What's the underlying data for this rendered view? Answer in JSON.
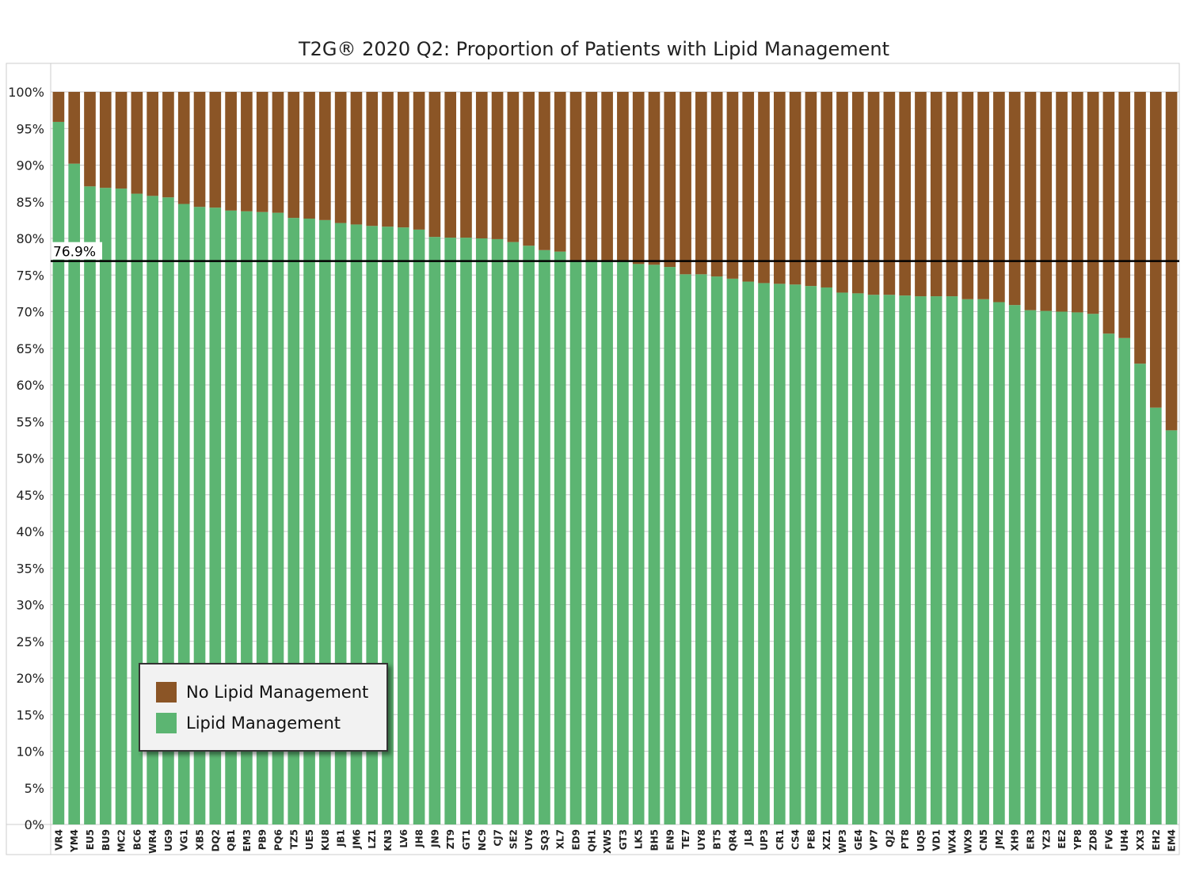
{
  "chart_data": {
    "type": "bar",
    "stacked": true,
    "title": "T2G® 2020 Q2: Proportion of Patients with Lipid Management",
    "xlabel": "",
    "ylabel": "",
    "ylim": [
      0,
      100
    ],
    "y_ticks": [
      "0%",
      "5%",
      "10%",
      "15%",
      "20%",
      "25%",
      "30%",
      "35%",
      "40%",
      "45%",
      "50%",
      "55%",
      "60%",
      "65%",
      "70%",
      "75%",
      "80%",
      "85%",
      "90%",
      "95%",
      "100%"
    ],
    "grid": "horizontal",
    "legend_position": "bottom-left",
    "reference_line": {
      "value": 76.9,
      "label": "76.9%"
    },
    "categories": [
      "VR4",
      "YM4",
      "EU5",
      "BU9",
      "MC2",
      "BC6",
      "WR4",
      "UG9",
      "VG1",
      "XB5",
      "DQ2",
      "QB1",
      "EM3",
      "PB9",
      "PQ6",
      "TZ5",
      "UE5",
      "KU8",
      "JB1",
      "JM6",
      "LZ1",
      "KN3",
      "LV6",
      "JH8",
      "JN9",
      "ZT9",
      "GT1",
      "NC9",
      "CJ7",
      "SE2",
      "UY6",
      "SQ3",
      "XL7",
      "ED9",
      "QH1",
      "XW5",
      "GT3",
      "LK5",
      "BH5",
      "EN9",
      "TE7",
      "UY8",
      "BT5",
      "QR4",
      "JL8",
      "UP3",
      "CR1",
      "CS4",
      "PE8",
      "XZ1",
      "WP3",
      "GE4",
      "VP7",
      "QJ2",
      "PT8",
      "UQ5",
      "VD1",
      "WX4",
      "WX9",
      "CN5",
      "JM2",
      "XH9",
      "ER3",
      "YZ3",
      "EE2",
      "YP8",
      "ZD8",
      "FV6",
      "UH4",
      "XX3",
      "EH2",
      "EM4"
    ],
    "series": [
      {
        "name": "Lipid Management",
        "color": "#5cb572",
        "values": [
          95.9,
          90.2,
          87.1,
          86.9,
          86.8,
          86.1,
          85.8,
          85.6,
          84.7,
          84.3,
          84.2,
          83.8,
          83.7,
          83.6,
          83.5,
          82.8,
          82.7,
          82.5,
          82.1,
          81.9,
          81.7,
          81.6,
          81.5,
          81.2,
          80.2,
          80.1,
          80.1,
          80.0,
          79.9,
          79.5,
          79.0,
          78.4,
          78.2,
          77.0,
          76.9,
          76.8,
          76.8,
          76.5,
          76.4,
          76.1,
          75.1,
          75.1,
          74.8,
          74.5,
          74.1,
          73.9,
          73.8,
          73.7,
          73.5,
          73.3,
          72.6,
          72.5,
          72.3,
          72.3,
          72.2,
          72.1,
          72.1,
          72.1,
          71.7,
          71.7,
          71.3,
          70.9,
          70.2,
          70.1,
          70.0,
          69.9,
          69.7,
          67.0,
          66.4,
          62.9,
          56.9,
          53.8
        ]
      },
      {
        "name": "No Lipid Management",
        "color": "#8b5526",
        "values": [
          4.1,
          9.8,
          12.9,
          13.1,
          13.2,
          13.9,
          14.2,
          14.4,
          15.3,
          15.7,
          15.8,
          16.2,
          16.3,
          16.4,
          16.5,
          17.2,
          17.3,
          17.5,
          17.9,
          18.1,
          18.3,
          18.4,
          18.5,
          18.8,
          19.8,
          19.9,
          19.9,
          20.0,
          20.1,
          20.5,
          21.0,
          21.6,
          21.8,
          23.0,
          23.1,
          23.2,
          23.2,
          23.5,
          23.6,
          23.9,
          24.9,
          24.9,
          25.2,
          25.5,
          25.9,
          26.1,
          26.2,
          26.3,
          26.5,
          26.7,
          27.4,
          27.5,
          27.7,
          27.7,
          27.8,
          27.9,
          27.9,
          27.9,
          28.3,
          28.3,
          28.7,
          29.1,
          29.8,
          29.9,
          30.0,
          30.1,
          30.3,
          33.0,
          33.6,
          37.1,
          43.1,
          46.2
        ]
      }
    ]
  },
  "legend": {
    "items": [
      {
        "label": "No Lipid Management",
        "color": "#8b5526"
      },
      {
        "label": "Lipid Management",
        "color": "#5cb572"
      }
    ]
  }
}
